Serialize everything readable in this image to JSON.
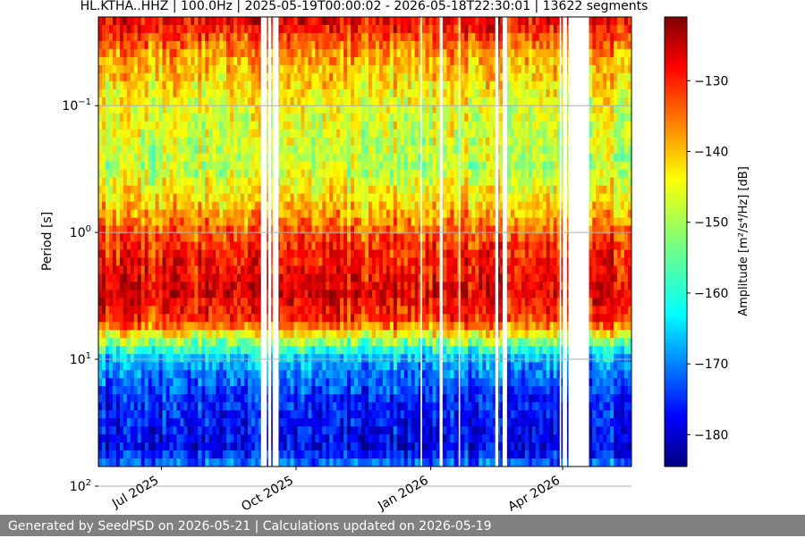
{
  "chart_data": {
    "type": "heatmap",
    "title": "HL.KTHA..HHZ | 100.0Hz | 2025-05-19T00:00:02 - 2026-05-18T22:30:01 | 13622 segments",
    "ylabel": "Period [s]",
    "y_scale": "log",
    "y_inverted": true,
    "ylim": [
      0.02,
      70
    ],
    "y_ticks": [
      {
        "value": 0.1,
        "base": "10",
        "exp": "−1"
      },
      {
        "value": 1,
        "base": "10",
        "exp": "0"
      },
      {
        "value": 10,
        "base": "10",
        "exp": "1"
      },
      {
        "value": 100,
        "base": "10",
        "exp": "2"
      }
    ],
    "xlim": [
      "2025-05-19",
      "2026-05-18"
    ],
    "x_ticks": [
      {
        "date": "2025-07-01",
        "label": "Jul 2025"
      },
      {
        "date": "2025-10-01",
        "label": "Oct 2025"
      },
      {
        "date": "2026-01-01",
        "label": "Jan 2026"
      },
      {
        "date": "2026-04-01",
        "label": "Apr 2026"
      }
    ],
    "grid": true,
    "colormap": "jet",
    "colorbar": {
      "label": "Amplitude [m²/s⁴/Hz] [dB]",
      "range": [
        -184.5,
        -121
      ],
      "ticks": [
        -130,
        -140,
        -150,
        -160,
        -170,
        -180
      ]
    },
    "data_gaps": [
      [
        "2025-09-07",
        "2025-09-11"
      ],
      [
        "2025-09-12",
        "2025-09-14"
      ],
      [
        "2025-09-15",
        "2025-09-19"
      ],
      [
        "2025-12-25",
        "2025-12-26"
      ],
      [
        "2026-01-07",
        "2026-01-09"
      ],
      [
        "2026-01-20",
        "2026-01-21"
      ],
      [
        "2026-02-14",
        "2026-02-16"
      ],
      [
        "2026-02-19",
        "2026-02-22"
      ],
      [
        "2026-03-30",
        "2026-03-31"
      ],
      [
        "2026-04-01",
        "2026-04-04"
      ],
      [
        "2026-04-05",
        "2026-04-19"
      ]
    ],
    "period_profile": [
      {
        "period": 0.02,
        "db": -127
      },
      {
        "period": 0.04,
        "db": -139
      },
      {
        "period": 0.1,
        "db": -146
      },
      {
        "period": 0.3,
        "db": -149
      },
      {
        "period": 0.6,
        "db": -142
      },
      {
        "period": 1.2,
        "db": -132
      },
      {
        "period": 3,
        "db": -127
      },
      {
        "period": 5,
        "db": -132
      },
      {
        "period": 7,
        "db": -150
      },
      {
        "period": 10,
        "db": -165
      },
      {
        "period": 20,
        "db": -174
      },
      {
        "period": 50,
        "db": -178
      },
      {
        "period": 70,
        "db": -168
      }
    ]
  },
  "footer": {
    "text": "Generated by SeedPSD on 2026-05-21 | Calculations updated on 2026-05-19"
  }
}
